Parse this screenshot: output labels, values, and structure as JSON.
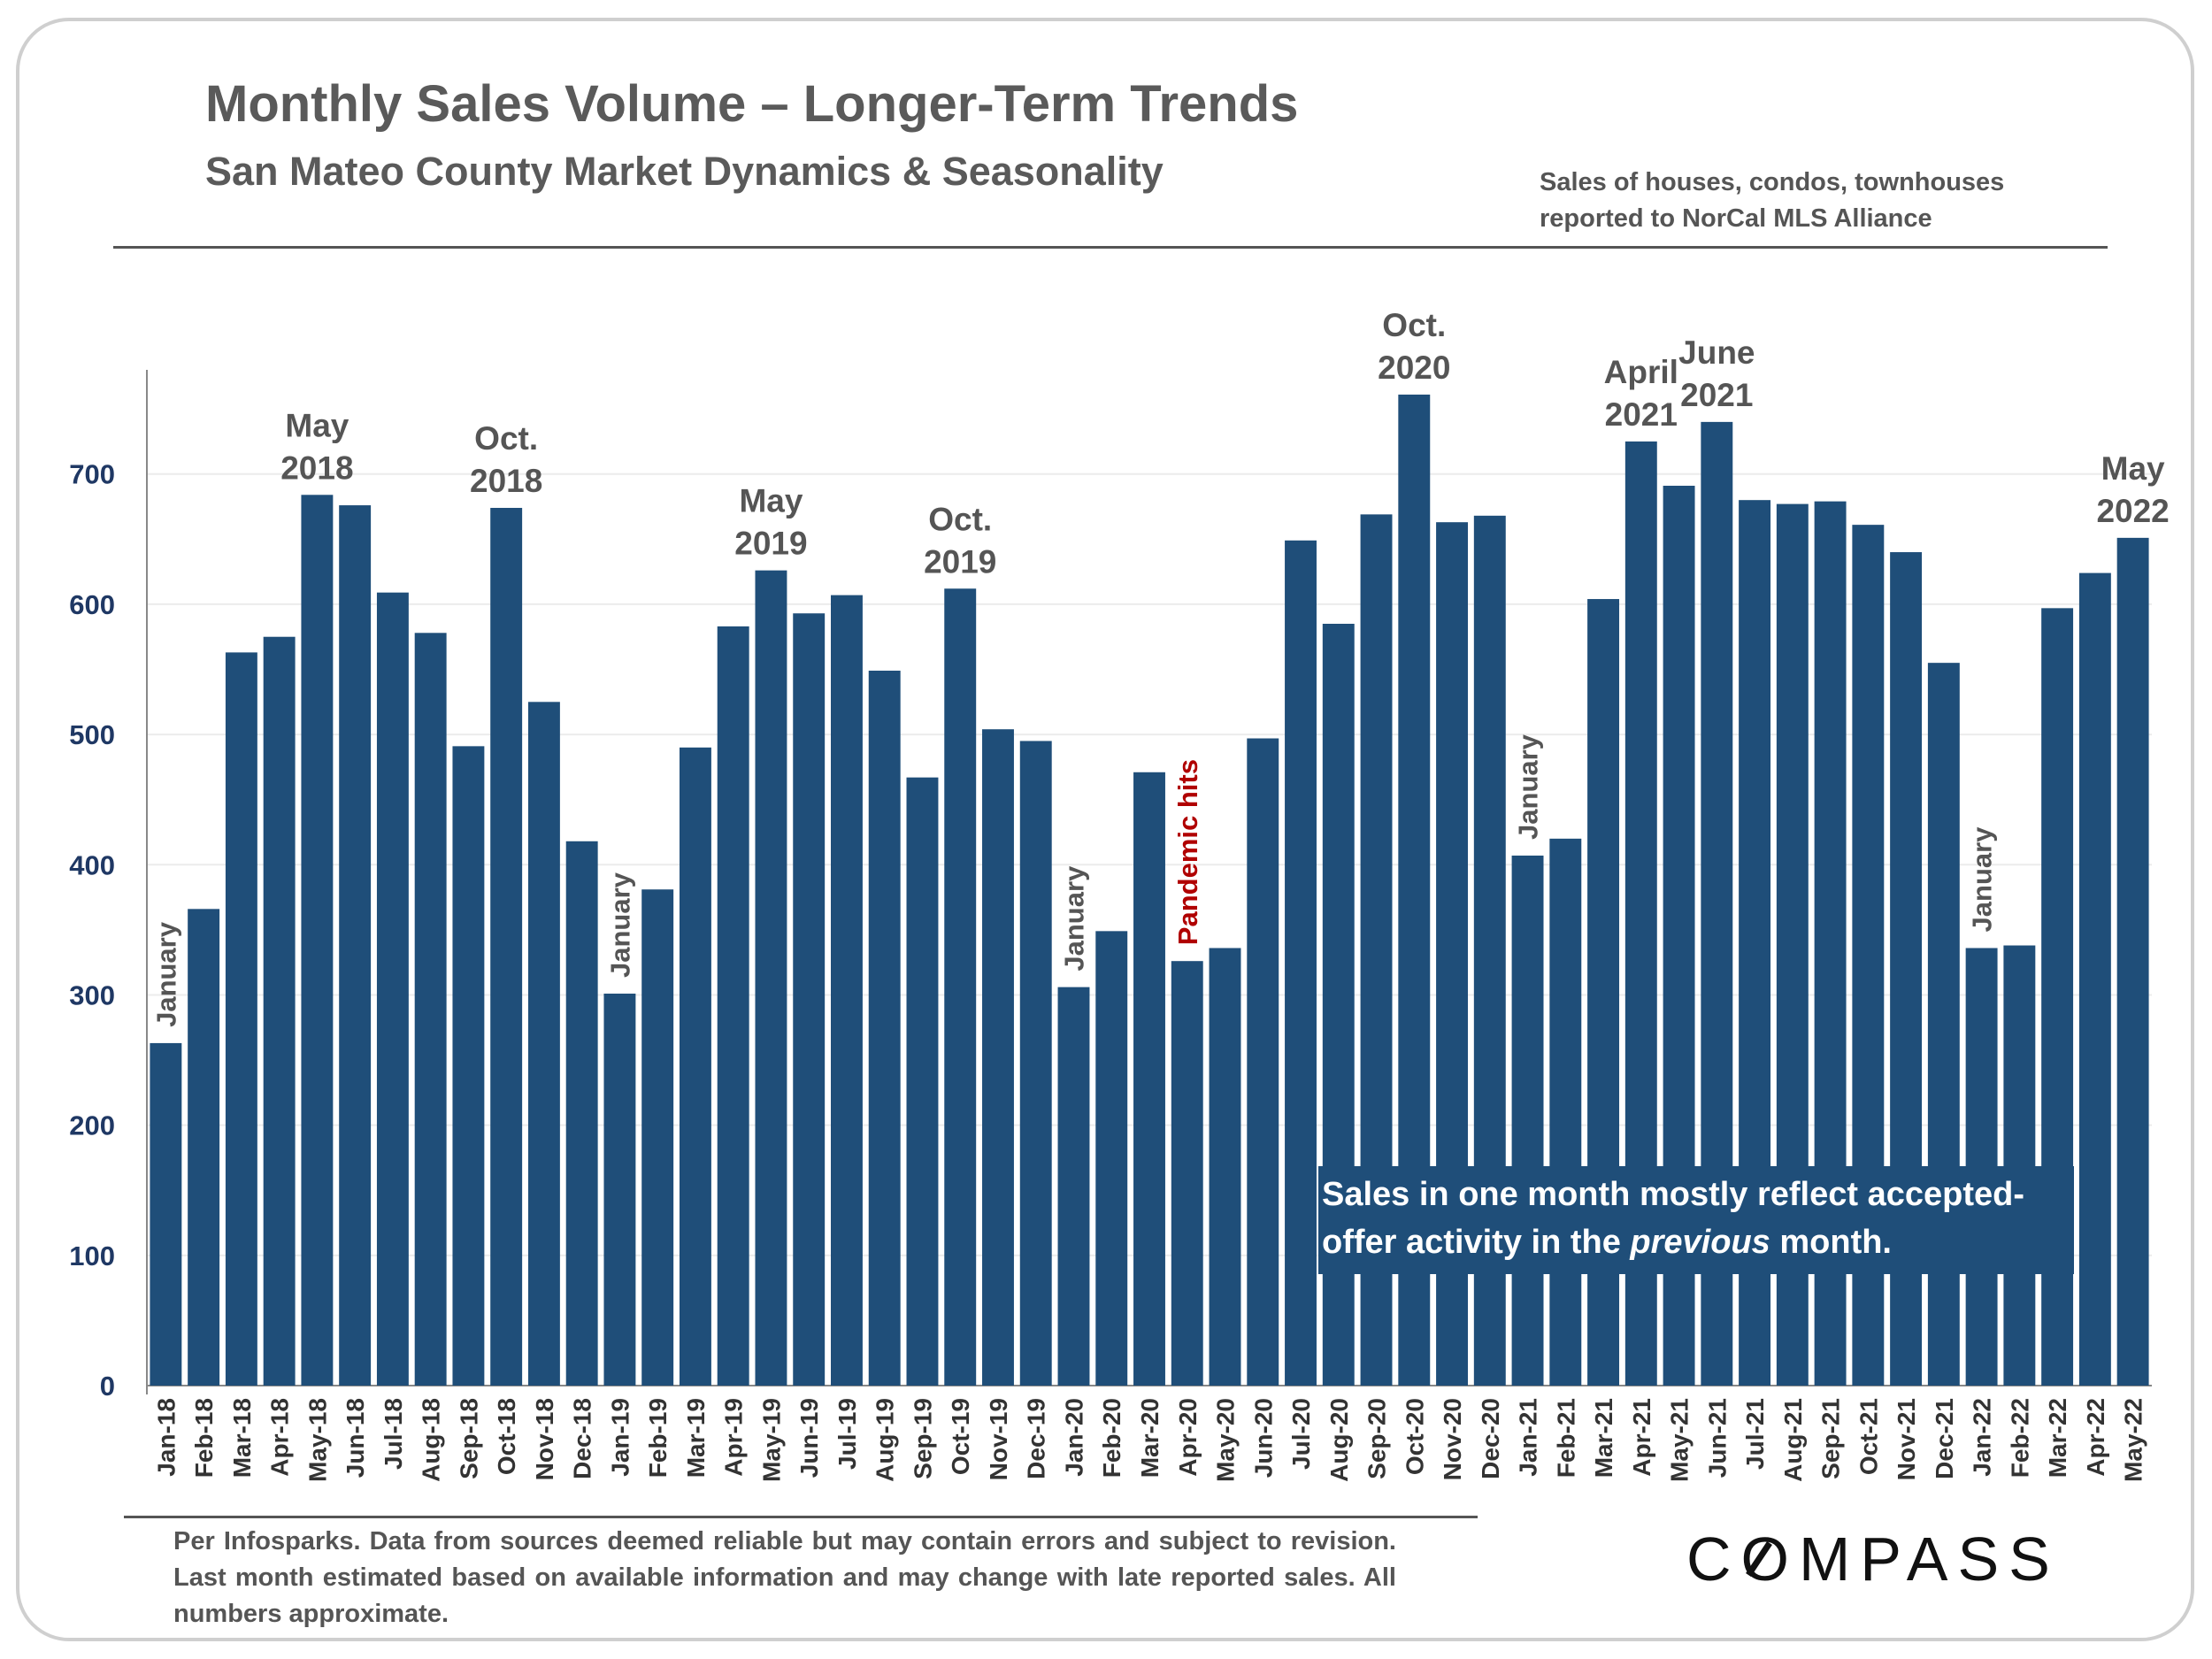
{
  "header": {
    "title": "Monthly Sales Volume – Longer-Term Trends",
    "subtitle": "San Mateo County Market Dynamics & Seasonality",
    "source_note": "Sales of houses, condos, townhouses\nreported to NorCal MLS Alliance"
  },
  "footer": {
    "disclaimer": "Per Infosparks. Data from sources deemed reliable but may contain errors and subject to revision. Last month estimated based on available information and may change with late reported sales. All numbers approximate.",
    "brand": "COMPASS"
  },
  "chart_data": {
    "type": "bar",
    "title": "Monthly Sales Volume – Longer-Term Trends",
    "subtitle": "San Mateo County Market Dynamics & Seasonality",
    "xlabel": "",
    "ylabel": "",
    "ylim": [
      0,
      780
    ],
    "yticks": [
      0,
      100,
      200,
      300,
      400,
      500,
      600,
      700
    ],
    "grid": true,
    "legend": "none",
    "bar_color": "#1f4e79",
    "categories": [
      "Jan-18",
      "Feb-18",
      "Mar-18",
      "Apr-18",
      "May-18",
      "Jun-18",
      "Jul-18",
      "Aug-18",
      "Sep-18",
      "Oct-18",
      "Nov-18",
      "Dec-18",
      "Jan-19",
      "Feb-19",
      "Mar-19",
      "Apr-19",
      "May-19",
      "Jun-19",
      "Jul-19",
      "Aug-19",
      "Sep-19",
      "Oct-19",
      "Nov-19",
      "Dec-19",
      "Jan-20",
      "Feb-20",
      "Mar-20",
      "Apr-20",
      "May-20",
      "Jun-20",
      "Jul-20",
      "Aug-20",
      "Sep-20",
      "Oct-20",
      "Nov-20",
      "Dec-20",
      "Jan-21",
      "Feb-21",
      "Mar-21",
      "Apr-21",
      "May-21",
      "Jun-21",
      "Jul-21",
      "Aug-21",
      "Sep-21",
      "Oct-21",
      "Nov-21",
      "Dec-21",
      "Jan-22",
      "Feb-22",
      "Mar-22",
      "Apr-22",
      "May-22"
    ],
    "values": [
      263,
      366,
      563,
      575,
      684,
      676,
      609,
      578,
      491,
      674,
      525,
      418,
      301,
      381,
      490,
      583,
      626,
      593,
      607,
      549,
      467,
      612,
      504,
      495,
      306,
      349,
      471,
      326,
      336,
      497,
      649,
      585,
      669,
      761,
      663,
      668,
      407,
      420,
      604,
      725,
      691,
      740,
      680,
      677,
      679,
      661,
      640,
      555,
      336,
      338,
      597,
      624,
      651
    ],
    "annotations": [
      {
        "label": "May\n2018",
        "category": "May-18",
        "color": "#555555",
        "orientation": "horizontal"
      },
      {
        "label": "Oct.\n2018",
        "category": "Oct-18",
        "color": "#555555",
        "orientation": "horizontal"
      },
      {
        "label": "May\n2019",
        "category": "May-19",
        "color": "#555555",
        "orientation": "horizontal"
      },
      {
        "label": "Oct.\n2019",
        "category": "Oct-19",
        "color": "#555555",
        "orientation": "horizontal"
      },
      {
        "label": "Oct.\n2020",
        "category": "Oct-20",
        "color": "#555555",
        "orientation": "horizontal"
      },
      {
        "label": "April\n2021",
        "category": "Apr-21",
        "color": "#555555",
        "orientation": "horizontal"
      },
      {
        "label": "June\n2021",
        "category": "Jun-21",
        "color": "#555555",
        "orientation": "horizontal"
      },
      {
        "label": "May\n2022",
        "category": "May-22",
        "color": "#555555",
        "orientation": "horizontal"
      },
      {
        "label": "January",
        "category": "Jan-18",
        "color": "#555555",
        "orientation": "vertical"
      },
      {
        "label": "January",
        "category": "Jan-19",
        "color": "#555555",
        "orientation": "vertical"
      },
      {
        "label": "January",
        "category": "Jan-20",
        "color": "#555555",
        "orientation": "vertical"
      },
      {
        "label": "January",
        "category": "Jan-21",
        "color": "#555555",
        "orientation": "vertical"
      },
      {
        "label": "January",
        "category": "Jan-22",
        "color": "#555555",
        "orientation": "vertical"
      },
      {
        "label": "Pandemic hits",
        "category": "Apr-20",
        "color": "#b00000",
        "orientation": "vertical"
      }
    ],
    "callout": {
      "line1": "Sales in one month mostly reflect accepted-",
      "line2_before": "offer activity in the ",
      "line2_em": "previous",
      "line2_after": " month."
    }
  }
}
